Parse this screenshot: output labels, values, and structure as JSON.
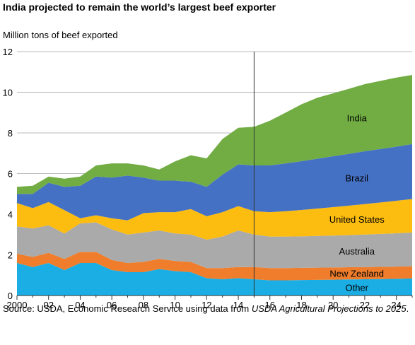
{
  "title": "India projected to remain the world’s largest beef exporter",
  "source": {
    "prefix": "Source: USDA, Economic Research Service using data from ",
    "italic": "USDA Agricultural Projections to 2025",
    "suffix": "."
  },
  "colors": {
    "Other": "#1aaee5",
    "New Zealand": "#ef7d2b",
    "Australia": "#aaaaaa",
    "United States": "#fdbd10",
    "Brazil": "#4571c4",
    "India": "#72ad44",
    "divider": "#333333",
    "axis": "#333333",
    "grid": "#bbbbbb"
  },
  "chart_data": {
    "type": "area",
    "stacked": true,
    "title": "India projected to remain the world’s largest beef exporter",
    "ylabel": "Million tons of beef exported",
    "xlabel": "",
    "ylim": [
      0,
      12
    ],
    "xlim": [
      2000,
      2025
    ],
    "grid": true,
    "projection_start": 2015,
    "x": [
      2000,
      2001,
      2002,
      2003,
      2004,
      2005,
      2006,
      2007,
      2008,
      2009,
      2010,
      2011,
      2012,
      2013,
      2014,
      2015,
      2016,
      2017,
      2018,
      2019,
      2020,
      2021,
      2022,
      2023,
      2024,
      2025
    ],
    "x_ticks": [
      2000,
      2002,
      2004,
      2006,
      2008,
      2010,
      2012,
      2014,
      2016,
      2018,
      2020,
      2022,
      2024
    ],
    "x_tick_labels": [
      "2000",
      "02",
      "04",
      "06",
      "08",
      "10",
      "12",
      "14",
      "16",
      "18",
      "20",
      "22",
      "24"
    ],
    "y_ticks": [
      0,
      2,
      4,
      6,
      8,
      10,
      12
    ],
    "y_tick_labels": [
      "0",
      "2",
      "4",
      "6",
      "8",
      "10",
      "12"
    ],
    "series": [
      {
        "name": "Other",
        "values": [
          1.6,
          1.4,
          1.6,
          1.25,
          1.6,
          1.6,
          1.25,
          1.15,
          1.15,
          1.3,
          1.2,
          1.15,
          0.85,
          0.8,
          0.85,
          0.8,
          0.75,
          0.75,
          0.76,
          0.77,
          0.78,
          0.79,
          0.8,
          0.81,
          0.82,
          0.84
        ]
      },
      {
        "name": "New Zealand",
        "values": [
          0.45,
          0.5,
          0.5,
          0.55,
          0.55,
          0.55,
          0.5,
          0.45,
          0.5,
          0.5,
          0.5,
          0.5,
          0.5,
          0.55,
          0.55,
          0.6,
          0.6,
          0.6,
          0.6,
          0.6,
          0.6,
          0.6,
          0.6,
          0.6,
          0.6,
          0.6
        ]
      },
      {
        "name": "Australia",
        "values": [
          1.35,
          1.4,
          1.35,
          1.25,
          1.4,
          1.45,
          1.5,
          1.4,
          1.45,
          1.4,
          1.35,
          1.35,
          1.4,
          1.55,
          1.8,
          1.6,
          1.55,
          1.55,
          1.55,
          1.56,
          1.57,
          1.58,
          1.6,
          1.62,
          1.64,
          1.66
        ]
      },
      {
        "name": "United States",
        "values": [
          1.15,
          1.0,
          1.15,
          1.15,
          0.25,
          0.35,
          0.55,
          0.7,
          0.95,
          0.9,
          1.05,
          1.25,
          1.15,
          1.2,
          1.2,
          1.15,
          1.2,
          1.25,
          1.3,
          1.35,
          1.4,
          1.45,
          1.5,
          1.55,
          1.6,
          1.65
        ]
      },
      {
        "name": "Brazil",
        "values": [
          0.45,
          0.7,
          0.95,
          1.15,
          1.6,
          1.9,
          2.0,
          2.2,
          1.75,
          1.55,
          1.55,
          1.35,
          1.45,
          1.85,
          2.05,
          2.25,
          2.3,
          2.35,
          2.4,
          2.45,
          2.5,
          2.55,
          2.6,
          2.63,
          2.66,
          2.7
        ]
      },
      {
        "name": "India",
        "values": [
          0.35,
          0.4,
          0.3,
          0.4,
          0.45,
          0.55,
          0.7,
          0.6,
          0.6,
          0.55,
          0.95,
          1.3,
          1.4,
          1.75,
          1.8,
          1.9,
          2.2,
          2.5,
          2.8,
          3.0,
          3.1,
          3.2,
          3.3,
          3.35,
          3.4,
          3.4
        ]
      }
    ]
  }
}
